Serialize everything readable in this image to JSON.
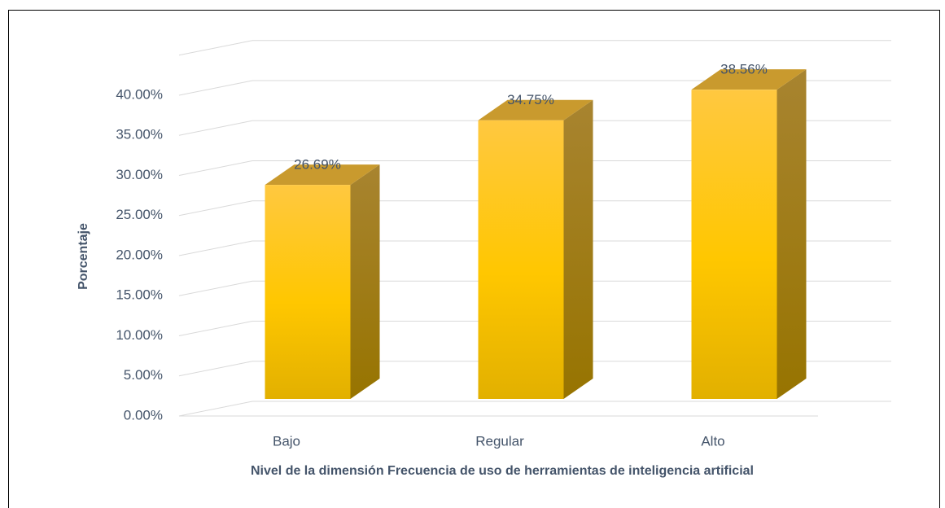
{
  "chart_data": {
    "type": "bar3d",
    "categories": [
      "Bajo",
      "Regular",
      "Alto"
    ],
    "values": [
      26.69,
      34.75,
      38.56
    ],
    "value_labels": [
      "26.69%",
      "34.75%",
      "38.56%"
    ],
    "color": "#ffc700",
    "xlabel": "Nivel de la dimensión Frecuencia de uso de herramientas de inteligencia artificial",
    "ylabel": "Porcentaje",
    "ylim": [
      0,
      45
    ],
    "yticks": [
      {
        "value": 0,
        "label": "0.00%"
      },
      {
        "value": 5,
        "label": "5.00%"
      },
      {
        "value": 10,
        "label": "10.00%"
      },
      {
        "value": 15,
        "label": "15.00%"
      },
      {
        "value": 20,
        "label": "20.00%"
      },
      {
        "value": 25,
        "label": "25.00%"
      },
      {
        "value": 30,
        "label": "30.00%"
      },
      {
        "value": 35,
        "label": "35.00%"
      },
      {
        "value": 40,
        "label": "40.00%"
      }
    ],
    "grid": true
  }
}
